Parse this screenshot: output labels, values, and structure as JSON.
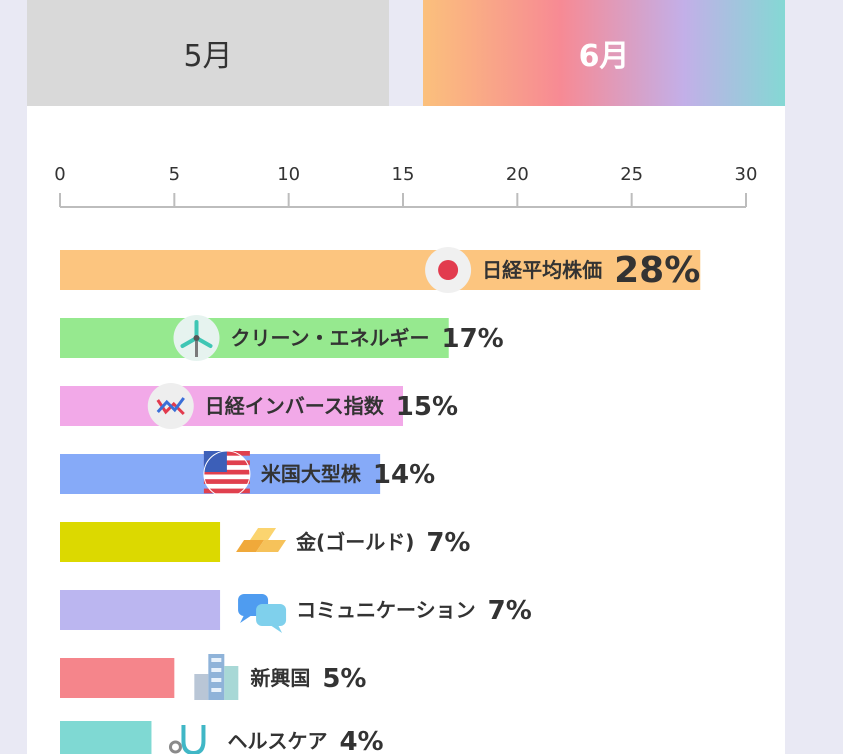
{
  "tabs": [
    {
      "label": "5月",
      "active": false
    },
    {
      "label": "6月",
      "active": true
    }
  ],
  "colors": {
    "tab_inactive": "#d9d9d9",
    "tab_active_gradient": [
      "#fbc07c",
      "#f78a94",
      "#c3afe8",
      "#84d8d4"
    ],
    "axis": "#bdbdbd",
    "text": "#333333"
  },
  "chart_data": {
    "type": "bar",
    "orientation": "horizontal",
    "xlim": [
      0,
      30
    ],
    "xticks": [
      "0",
      "5",
      "10",
      "15",
      "20",
      "25",
      "30"
    ],
    "categories": [
      "日経平均株価",
      "クリーン・エネルギー",
      "日経インバース指数",
      "米国大型株",
      "金(ゴールド)",
      "コミュニケーション",
      "新興国",
      "ヘルスケア"
    ],
    "values": [
      28,
      17,
      15,
      14,
      7,
      7,
      5,
      4
    ],
    "value_labels": [
      "28%",
      "17%",
      "15%",
      "14%",
      "7%",
      "7%",
      "5%",
      "4%"
    ],
    "bar_colors": [
      "#fcc57f",
      "#96e98f",
      "#f2a9e8",
      "#86aaf8",
      "#dcd900",
      "#bbb6f0",
      "#f5858b",
      "#7fd9d3"
    ],
    "icons": [
      "japan-flag-icon",
      "wind-turbine-icon",
      "inverse-chart-icon",
      "us-flag-icon",
      "gold-bar-icon",
      "chat-bubbles-icon",
      "buildings-icon",
      "stethoscope-icon"
    ],
    "grid": false
  }
}
